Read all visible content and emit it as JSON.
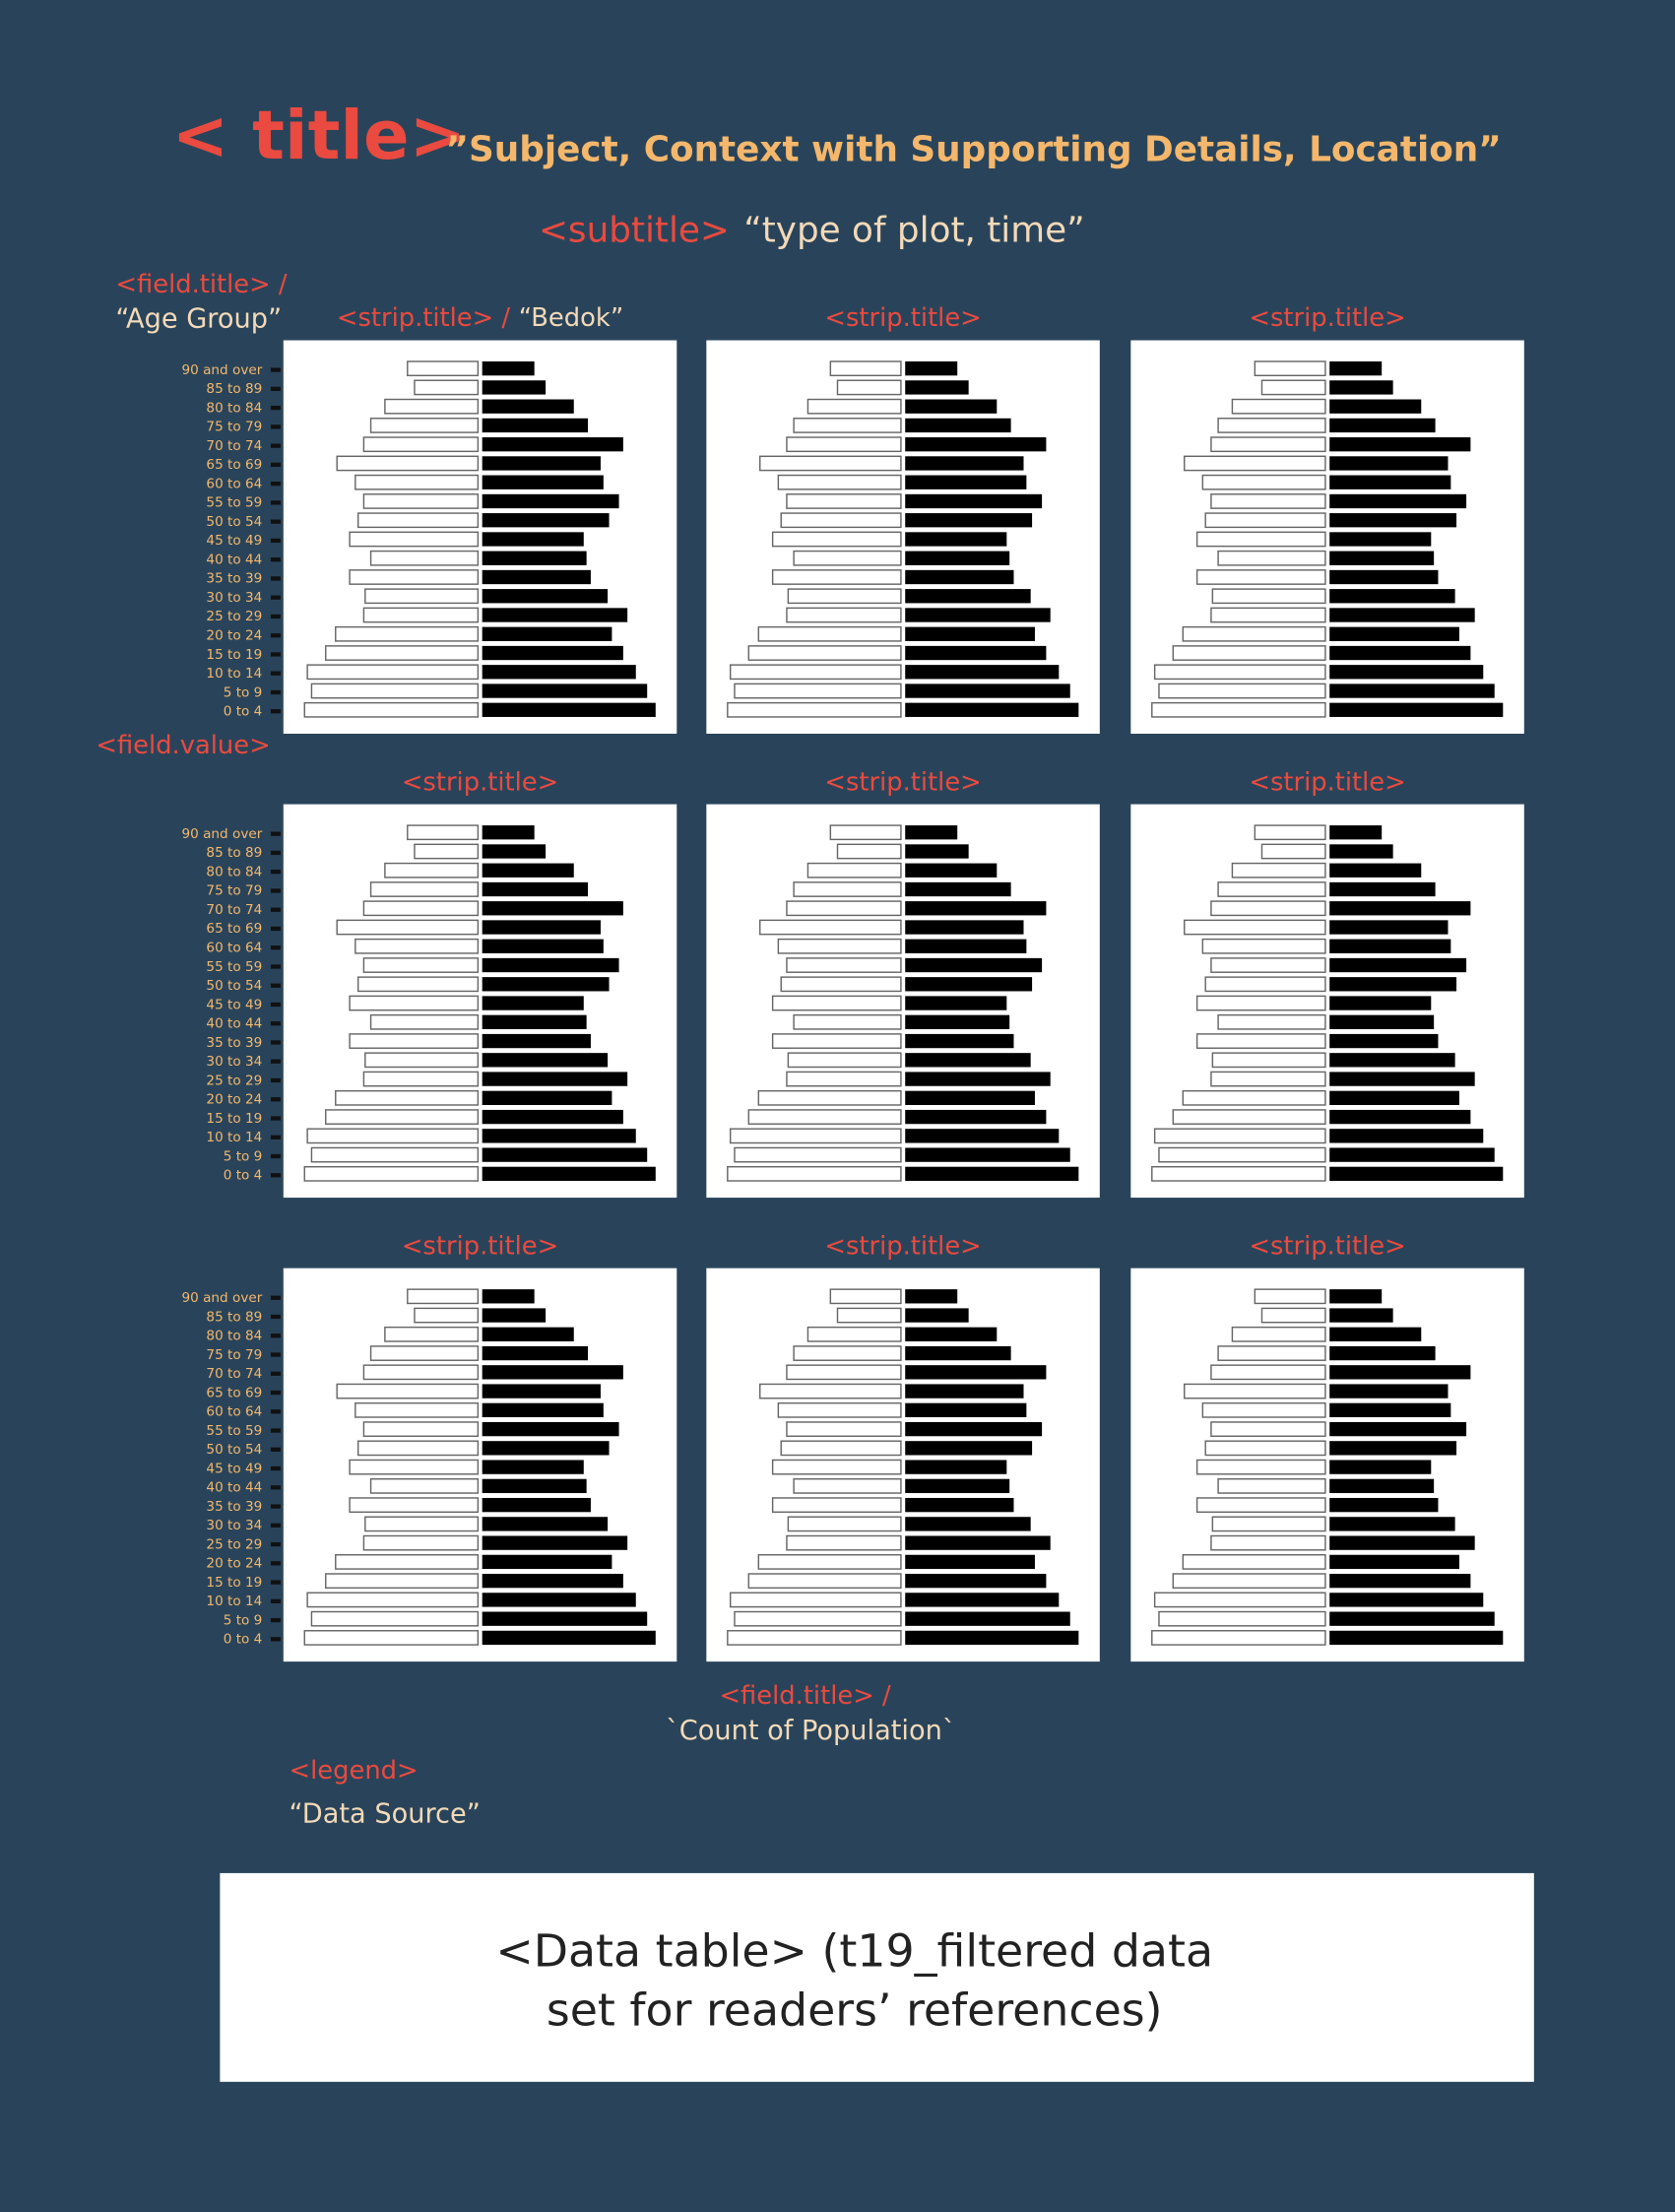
{
  "title_tag": "< title>",
  "title": "”Subject, Context with Supporting Details, Location”",
  "subtitle_tag": "<subtitle>",
  "subtitle": "“type of plot, time”",
  "field_title_y": {
    "tag": "<field.title> /",
    "text": "“Age Group”"
  },
  "field_value": "<field.value>",
  "panels": [
    {
      "strip_tag": "<strip.title> /",
      "strip": "“Bedok”"
    },
    {
      "strip_tag": "<strip.title>"
    },
    {
      "strip_tag": "<strip.title>"
    },
    {
      "strip_tag": "<strip.title>"
    },
    {
      "strip_tag": "<strip.title>"
    },
    {
      "strip_tag": "<strip.title>"
    },
    {
      "strip_tag": "<strip.title>"
    },
    {
      "strip_tag": "<strip.title>"
    },
    {
      "strip_tag": "<strip.title>"
    }
  ],
  "field_title_x": {
    "tag": "<field.title> /",
    "text": "`Count of Population`"
  },
  "legend": {
    "tag": "<legend>",
    "text": "“Data Source”"
  },
  "data_table": [
    "<Data table> (t19_filtered data",
    "set for readers’ references)"
  ],
  "chart_data": {
    "type": "pyramid",
    "categories": [
      "90 and over",
      "85 to 89",
      "80 to 84",
      "75 to 79",
      "70 to 74",
      "65 to 69",
      "60 to 64",
      "55 to 59",
      "50 to 54",
      "45 to 49",
      "40 to 44",
      "35 to 39",
      "30 to 34",
      "25 to 29",
      "20 to 24",
      "15 to 19",
      "10 to 14",
      "5 to 9",
      "0 to 4"
    ],
    "series": [
      {
        "color": "#ffffff",
        "values": [
          50,
          45,
          66,
          76,
          81,
          100,
          87,
          81,
          85,
          91,
          76,
          91,
          80,
          81,
          101,
          108,
          121,
          118,
          123
        ]
      },
      {
        "color": "#000000",
        "values": [
          37,
          45,
          65,
          75,
          100,
          84,
          86,
          97,
          90,
          72,
          74,
          77,
          89,
          103,
          92,
          100,
          109,
          117,
          123
        ]
      }
    ]
  }
}
